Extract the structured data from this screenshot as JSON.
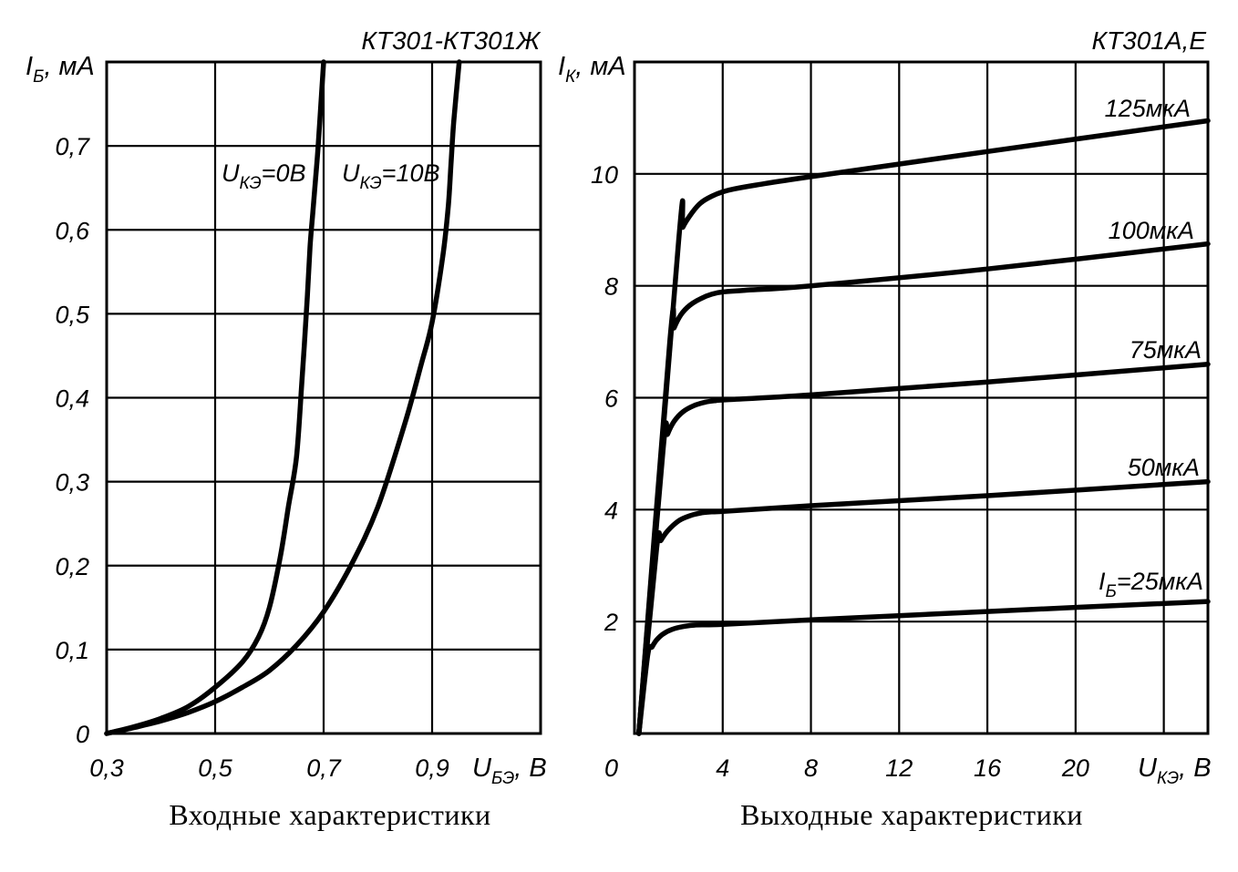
{
  "chart_data": [
    {
      "type": "line",
      "title": "КТ301-КТ301Ж",
      "caption": "Входные характеристики",
      "ylabel": {
        "var": "I",
        "sub": "Б",
        "unit": ", мА"
      },
      "xlabel": {
        "var": "U",
        "sub": "БЭ",
        "unit": ", В"
      },
      "xlim": [
        0.3,
        1.1
      ],
      "ylim": [
        0,
        0.8
      ],
      "grid": true,
      "x_ticks": [
        {
          "v": 0.3,
          "t": "0,3"
        },
        {
          "v": 0.5,
          "t": "0,5"
        },
        {
          "v": 0.7,
          "t": "0,7"
        },
        {
          "v": 0.9,
          "t": "0,9"
        }
      ],
      "y_ticks": [
        {
          "v": 0,
          "t": "0"
        },
        {
          "v": 0.1,
          "t": "0,1"
        },
        {
          "v": 0.2,
          "t": "0,2"
        },
        {
          "v": 0.3,
          "t": "0,3"
        },
        {
          "v": 0.4,
          "t": "0,4"
        },
        {
          "v": 0.5,
          "t": "0,5"
        },
        {
          "v": 0.6,
          "t": "0,6"
        },
        {
          "v": 0.7,
          "t": "0,7"
        }
      ],
      "series": [
        {
          "label": {
            "var": "U",
            "sub": "КЭ",
            "rest": "=0В"
          },
          "x": [
            0.3,
            0.35,
            0.4,
            0.45,
            0.5,
            0.55,
            0.58,
            0.6,
            0.62,
            0.635,
            0.65,
            0.66,
            0.67,
            0.675,
            0.68,
            0.685,
            0.69,
            0.695,
            0.7
          ],
          "y": [
            0,
            0.008,
            0.018,
            0.032,
            0.055,
            0.085,
            0.115,
            0.15,
            0.21,
            0.27,
            0.33,
            0.42,
            0.52,
            0.58,
            0.62,
            0.66,
            0.7,
            0.75,
            0.8
          ]
        },
        {
          "label": {
            "var": "U",
            "sub": "КЭ",
            "rest": "=10В"
          },
          "x": [
            0.3,
            0.35,
            0.4,
            0.45,
            0.5,
            0.55,
            0.6,
            0.65,
            0.7,
            0.75,
            0.8,
            0.85,
            0.88,
            0.9,
            0.92,
            0.93,
            0.935,
            0.94,
            0.95
          ],
          "y": [
            0,
            0.007,
            0.015,
            0.025,
            0.038,
            0.055,
            0.075,
            0.105,
            0.145,
            0.2,
            0.27,
            0.37,
            0.44,
            0.49,
            0.57,
            0.63,
            0.68,
            0.73,
            0.8
          ]
        }
      ]
    },
    {
      "type": "line",
      "title": "КТ301А,Е",
      "caption": "Выходные характеристики",
      "ylabel": {
        "var": "I",
        "sub": "К",
        "unit": ", мА"
      },
      "xlabel": {
        "var": "U",
        "sub": "КЭ",
        "unit": ", В"
      },
      "xlim": [
        0,
        26
      ],
      "ylim": [
        0,
        12
      ],
      "grid": true,
      "origin_label": "0",
      "x_ticks": [
        {
          "v": 4,
          "t": "4"
        },
        {
          "v": 8,
          "t": "8"
        },
        {
          "v": 12,
          "t": "12"
        },
        {
          "v": 16,
          "t": "16"
        },
        {
          "v": 20,
          "t": "20"
        }
      ],
      "y_ticks": [
        {
          "v": 2,
          "t": "2"
        },
        {
          "v": 4,
          "t": "4"
        },
        {
          "v": 6,
          "t": "6"
        },
        {
          "v": 8,
          "t": "8"
        },
        {
          "v": 10,
          "t": "10"
        }
      ],
      "series": [
        {
          "label": {
            "var": "I",
            "sub": "Б",
            "rest": "=25мкА"
          },
          "x": [
            0.2,
            0.6,
            0.8,
            1.0,
            1.3,
            1.7,
            2.2,
            2.8,
            4,
            8,
            16,
            26
          ],
          "y": [
            0,
            1.4,
            1.55,
            1.67,
            1.78,
            1.86,
            1.91,
            1.94,
            1.95,
            2.03,
            2.18,
            2.36
          ]
        },
        {
          "label": {
            "var": "",
            "sub": "",
            "rest": "50мкА"
          },
          "x": [
            0.2,
            1.0,
            1.2,
            1.5,
            2.0,
            2.5,
            3.0,
            3.5,
            4,
            8,
            16,
            26
          ],
          "y": [
            0,
            3.3,
            3.45,
            3.62,
            3.8,
            3.89,
            3.94,
            3.96,
            3.97,
            4.07,
            4.25,
            4.5
          ]
        },
        {
          "label": {
            "var": "",
            "sub": "",
            "rest": "75мкА"
          },
          "x": [
            0.2,
            1.3,
            1.5,
            1.8,
            2.2,
            2.7,
            3.2,
            3.7,
            4,
            8,
            16,
            26
          ],
          "y": [
            0,
            5.1,
            5.35,
            5.58,
            5.75,
            5.86,
            5.92,
            5.95,
            5.96,
            6.05,
            6.28,
            6.6
          ]
        },
        {
          "label": {
            "var": "",
            "sub": "",
            "rest": "100мкА"
          },
          "x": [
            0.2,
            1.6,
            1.8,
            2.1,
            2.5,
            3.0,
            3.5,
            4.0,
            5,
            8,
            16,
            26
          ],
          "y": [
            0,
            7.0,
            7.25,
            7.48,
            7.65,
            7.77,
            7.85,
            7.89,
            7.92,
            8.0,
            8.3,
            8.75
          ]
        },
        {
          "label": {
            "var": "",
            "sub": "",
            "rest": "125мкА"
          },
          "x": [
            0.2,
            2.0,
            2.2,
            2.6,
            3.0,
            3.5,
            4.0,
            4.5,
            5.5,
            8,
            16,
            26
          ],
          "y": [
            0,
            8.8,
            9.05,
            9.3,
            9.48,
            9.6,
            9.68,
            9.73,
            9.8,
            9.95,
            10.4,
            10.95
          ]
        }
      ]
    }
  ]
}
